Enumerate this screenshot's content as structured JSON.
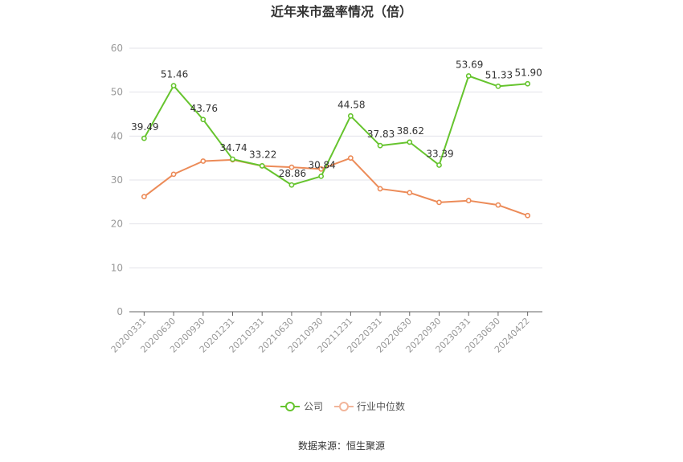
{
  "chart_data": {
    "type": "line",
    "title": "近年来市盈率情况（倍）",
    "source": "数据来源：恒生聚源",
    "categories": [
      "20200331",
      "20200630",
      "20200930",
      "20201231",
      "20210331",
      "20210630",
      "20210930",
      "20211231",
      "20220331",
      "20220630",
      "20220930",
      "20230331",
      "20230630",
      "20240422"
    ],
    "ylim": [
      0,
      60
    ],
    "yticks": [
      0,
      10,
      20,
      30,
      40,
      50,
      60
    ],
    "grid": true,
    "legend_position": "bottom",
    "series": [
      {
        "name": "公司",
        "color": "#66c42e",
        "values": [
          39.49,
          51.46,
          43.76,
          34.74,
          33.22,
          28.86,
          30.84,
          44.58,
          37.83,
          38.62,
          33.39,
          53.69,
          51.33,
          51.9
        ],
        "labels": [
          "39.49",
          "51.46",
          "43.76",
          "34.74",
          "33.22",
          "28.86",
          "30.84",
          "44.58",
          "37.83",
          "38.62",
          "33.39",
          "53.69",
          "51.33",
          "51.90"
        ]
      },
      {
        "name": "行业中位数",
        "color": "#ec8b58",
        "values": [
          26.2,
          31.3,
          34.3,
          34.6,
          33.2,
          32.9,
          32.5,
          35.0,
          28.0,
          27.1,
          24.9,
          25.3,
          24.3,
          21.9
        ]
      }
    ]
  }
}
